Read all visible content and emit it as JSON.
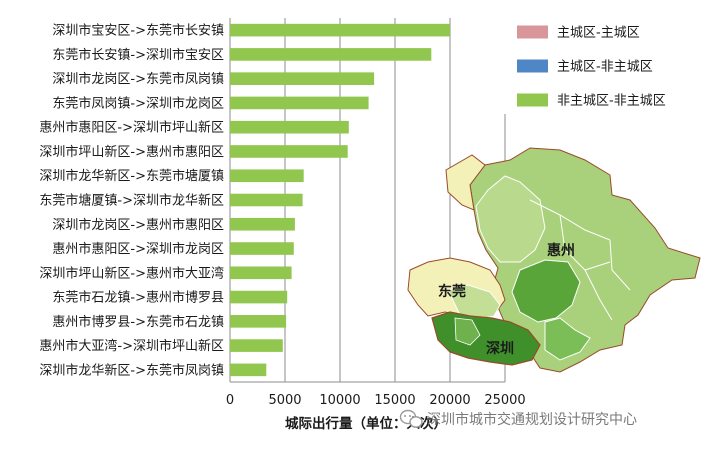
{
  "chart_data": {
    "type": "bar",
    "orientation": "horizontal",
    "categories": [
      "深圳市宝安区->东莞市长安镇",
      "东莞市长安镇->深圳市宝安区",
      "深圳市龙岗区->东莞市凤岗镇",
      "东莞市凤岗镇->深圳市龙岗区",
      "惠州市惠阳区->深圳市坪山新区",
      "深圳市坪山新区->惠州市惠阳区",
      "深圳市龙华新区->东莞市塘厦镇",
      "东莞市塘厦镇->深圳市龙华新区",
      "深圳市龙岗区->惠州市惠阳区",
      "惠州市惠阳区->深圳市龙岗区",
      "深圳市坪山新区->惠州市大亚湾",
      "东莞市石龙镇->惠州市博罗县",
      "惠州市博罗县->东莞市石龙镇",
      "惠州市大亚湾->深圳市坪山新区",
      "深圳市龙华新区->东莞市凤岗镇"
    ],
    "values": [
      20000,
      18300,
      13100,
      12600,
      10800,
      10700,
      6700,
      6600,
      5900,
      5800,
      5600,
      5200,
      5100,
      4800,
      3300
    ],
    "xticks": [
      "0",
      "5000",
      "10000",
      "15000",
      "20000",
      "25000"
    ],
    "xlim": [
      0,
      25000
    ],
    "xlabel": "城际出行量（单位：人次）",
    "ylabel": "",
    "grid": "vertical",
    "legend_position": "top-right",
    "legend": [
      {
        "label": "主城区-主城区",
        "color": "#d9969a"
      },
      {
        "label": "主城区-非主城区",
        "color": "#4f86c6"
      },
      {
        "label": "非主城区-非主城区",
        "color": "#92c74f"
      }
    ],
    "bar_color": "#92c74f"
  },
  "map": {
    "labels": [
      "惠州",
      "东莞",
      "深圳"
    ]
  },
  "watermark": {
    "text": "深圳市城市交通规划设计研究中心",
    "icon": "wechat-icon"
  }
}
